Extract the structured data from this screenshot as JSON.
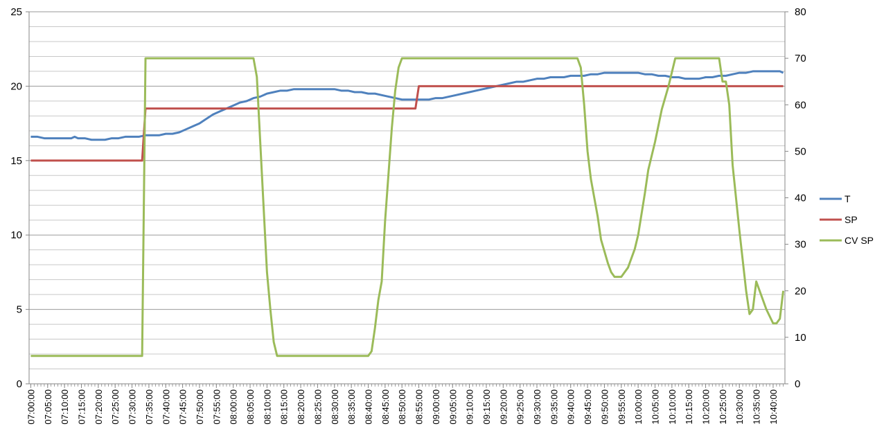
{
  "chart_data": {
    "type": "line",
    "title": "",
    "xlabel": "",
    "ylabel": "",
    "y2label": "",
    "grid": true,
    "legend_position": "right",
    "x_range": [
      "07:00:00",
      "10:43:00"
    ],
    "x_ticks": [
      "07:00:00",
      "07:05:00",
      "07:10:00",
      "07:15:00",
      "07:20:00",
      "07:25:00",
      "07:30:00",
      "07:35:00",
      "07:40:00",
      "07:45:00",
      "07:50:00",
      "07:55:00",
      "08:00:00",
      "08:05:00",
      "08:10:00",
      "08:15:00",
      "08:20:00",
      "08:25:00",
      "08:30:00",
      "08:35:00",
      "08:40:00",
      "08:45:00",
      "08:50:00",
      "08:55:00",
      "09:00:00",
      "09:05:00",
      "09:10:00",
      "09:15:00",
      "09:20:00",
      "09:25:00",
      "09:30:00",
      "09:35:00",
      "09:40:00",
      "09:45:00",
      "09:50:00",
      "09:55:00",
      "10:00:00",
      "10:05:00",
      "10:10:00",
      "10:15:00",
      "10:20:00",
      "10:25:00",
      "10:30:00",
      "10:35:00",
      "10:40:00"
    ],
    "y_left": {
      "min": 0,
      "max": 25,
      "ticks": [
        0,
        5,
        10,
        15,
        20,
        25
      ]
    },
    "y_right": {
      "min": 0,
      "max": 80,
      "ticks": [
        0,
        10,
        20,
        30,
        40,
        50,
        60,
        70,
        80
      ]
    },
    "series": [
      {
        "name": "T",
        "axis": "left",
        "color": "#4f81bd",
        "points": [
          [
            "07:00:00",
            16.6
          ],
          [
            "07:02:00",
            16.6
          ],
          [
            "07:04:00",
            16.5
          ],
          [
            "07:06:00",
            16.5
          ],
          [
            "07:08:00",
            16.5
          ],
          [
            "07:10:00",
            16.5
          ],
          [
            "07:12:00",
            16.5
          ],
          [
            "07:13:00",
            16.6
          ],
          [
            "07:14:00",
            16.5
          ],
          [
            "07:16:00",
            16.5
          ],
          [
            "07:18:00",
            16.4
          ],
          [
            "07:20:00",
            16.4
          ],
          [
            "07:22:00",
            16.4
          ],
          [
            "07:24:00",
            16.5
          ],
          [
            "07:26:00",
            16.5
          ],
          [
            "07:28:00",
            16.6
          ],
          [
            "07:30:00",
            16.6
          ],
          [
            "07:32:00",
            16.6
          ],
          [
            "07:34:00",
            16.7
          ],
          [
            "07:36:00",
            16.7
          ],
          [
            "07:38:00",
            16.7
          ],
          [
            "07:40:00",
            16.8
          ],
          [
            "07:42:00",
            16.8
          ],
          [
            "07:44:00",
            16.9
          ],
          [
            "07:46:00",
            17.1
          ],
          [
            "07:48:00",
            17.3
          ],
          [
            "07:50:00",
            17.5
          ],
          [
            "07:52:00",
            17.8
          ],
          [
            "07:54:00",
            18.1
          ],
          [
            "07:56:00",
            18.3
          ],
          [
            "07:58:00",
            18.5
          ],
          [
            "08:00:00",
            18.7
          ],
          [
            "08:02:00",
            18.9
          ],
          [
            "08:04:00",
            19.0
          ],
          [
            "08:06:00",
            19.2
          ],
          [
            "08:08:00",
            19.3
          ],
          [
            "08:10:00",
            19.5
          ],
          [
            "08:12:00",
            19.6
          ],
          [
            "08:14:00",
            19.7
          ],
          [
            "08:16:00",
            19.7
          ],
          [
            "08:18:00",
            19.8
          ],
          [
            "08:20:00",
            19.8
          ],
          [
            "08:22:00",
            19.8
          ],
          [
            "08:24:00",
            19.8
          ],
          [
            "08:26:00",
            19.8
          ],
          [
            "08:28:00",
            19.8
          ],
          [
            "08:30:00",
            19.8
          ],
          [
            "08:32:00",
            19.7
          ],
          [
            "08:34:00",
            19.7
          ],
          [
            "08:36:00",
            19.6
          ],
          [
            "08:38:00",
            19.6
          ],
          [
            "08:40:00",
            19.5
          ],
          [
            "08:42:00",
            19.5
          ],
          [
            "08:44:00",
            19.4
          ],
          [
            "08:46:00",
            19.3
          ],
          [
            "08:48:00",
            19.2
          ],
          [
            "08:50:00",
            19.1
          ],
          [
            "08:52:00",
            19.1
          ],
          [
            "08:54:00",
            19.1
          ],
          [
            "08:56:00",
            19.1
          ],
          [
            "08:58:00",
            19.1
          ],
          [
            "09:00:00",
            19.2
          ],
          [
            "09:02:00",
            19.2
          ],
          [
            "09:04:00",
            19.3
          ],
          [
            "09:06:00",
            19.4
          ],
          [
            "09:08:00",
            19.5
          ],
          [
            "09:10:00",
            19.6
          ],
          [
            "09:12:00",
            19.7
          ],
          [
            "09:14:00",
            19.8
          ],
          [
            "09:16:00",
            19.9
          ],
          [
            "09:18:00",
            20.0
          ],
          [
            "09:20:00",
            20.1
          ],
          [
            "09:22:00",
            20.2
          ],
          [
            "09:24:00",
            20.3
          ],
          [
            "09:26:00",
            20.3
          ],
          [
            "09:28:00",
            20.4
          ],
          [
            "09:30:00",
            20.5
          ],
          [
            "09:32:00",
            20.5
          ],
          [
            "09:34:00",
            20.6
          ],
          [
            "09:36:00",
            20.6
          ],
          [
            "09:38:00",
            20.6
          ],
          [
            "09:40:00",
            20.7
          ],
          [
            "09:42:00",
            20.7
          ],
          [
            "09:44:00",
            20.7
          ],
          [
            "09:46:00",
            20.8
          ],
          [
            "09:48:00",
            20.8
          ],
          [
            "09:50:00",
            20.9
          ],
          [
            "09:52:00",
            20.9
          ],
          [
            "09:54:00",
            20.9
          ],
          [
            "09:56:00",
            20.9
          ],
          [
            "09:58:00",
            20.9
          ],
          [
            "10:00:00",
            20.9
          ],
          [
            "10:02:00",
            20.8
          ],
          [
            "10:04:00",
            20.8
          ],
          [
            "10:06:00",
            20.7
          ],
          [
            "10:08:00",
            20.7
          ],
          [
            "10:10:00",
            20.6
          ],
          [
            "10:12:00",
            20.6
          ],
          [
            "10:14:00",
            20.5
          ],
          [
            "10:16:00",
            20.5
          ],
          [
            "10:18:00",
            20.5
          ],
          [
            "10:20:00",
            20.6
          ],
          [
            "10:22:00",
            20.6
          ],
          [
            "10:24:00",
            20.7
          ],
          [
            "10:26:00",
            20.7
          ],
          [
            "10:28:00",
            20.8
          ],
          [
            "10:30:00",
            20.9
          ],
          [
            "10:32:00",
            20.9
          ],
          [
            "10:34:00",
            21.0
          ],
          [
            "10:36:00",
            21.0
          ],
          [
            "10:38:00",
            21.0
          ],
          [
            "10:40:00",
            21.0
          ],
          [
            "10:42:00",
            21.0
          ],
          [
            "10:43:00",
            20.9
          ]
        ]
      },
      {
        "name": "SP",
        "axis": "left",
        "color": "#c0504d",
        "points": [
          [
            "07:00:00",
            15.0
          ],
          [
            "07:33:00",
            15.0
          ],
          [
            "07:34:00",
            18.5
          ],
          [
            "08:54:00",
            18.5
          ],
          [
            "08:55:00",
            20.0
          ],
          [
            "10:43:00",
            20.0
          ]
        ]
      },
      {
        "name": "CV SP",
        "axis": "right",
        "color": "#9bbb59",
        "points": [
          [
            "07:00:00",
            6
          ],
          [
            "07:33:00",
            6
          ],
          [
            "07:34:00",
            70
          ],
          [
            "08:06:00",
            70
          ],
          [
            "08:07:00",
            66
          ],
          [
            "08:08:00",
            52
          ],
          [
            "08:09:00",
            38
          ],
          [
            "08:10:00",
            24
          ],
          [
            "08:11:00",
            16
          ],
          [
            "08:12:00",
            9
          ],
          [
            "08:13:00",
            6
          ],
          [
            "08:40:00",
            6
          ],
          [
            "08:41:00",
            7
          ],
          [
            "08:42:00",
            12
          ],
          [
            "08:43:00",
            18
          ],
          [
            "08:44:00",
            22
          ],
          [
            "08:45:00",
            35
          ],
          [
            "08:47:00",
            55
          ],
          [
            "08:48:00",
            63
          ],
          [
            "08:49:00",
            68
          ],
          [
            "08:50:00",
            70
          ],
          [
            "09:42:00",
            70
          ],
          [
            "09:43:00",
            68
          ],
          [
            "09:44:00",
            60
          ],
          [
            "09:45:00",
            50
          ],
          [
            "09:46:00",
            44
          ],
          [
            "09:48:00",
            36
          ],
          [
            "09:49:00",
            31
          ],
          [
            "09:51:00",
            26
          ],
          [
            "09:52:00",
            24
          ],
          [
            "09:53:00",
            23
          ],
          [
            "09:54:00",
            23
          ],
          [
            "09:55:00",
            23
          ],
          [
            "09:56:00",
            24
          ],
          [
            "09:57:00",
            25
          ],
          [
            "09:59:00",
            29
          ],
          [
            "10:00:00",
            32
          ],
          [
            "10:02:00",
            41
          ],
          [
            "10:03:00",
            46
          ],
          [
            "10:05:00",
            52
          ],
          [
            "10:07:00",
            59
          ],
          [
            "10:09:00",
            64
          ],
          [
            "10:10:00",
            67
          ],
          [
            "10:11:00",
            70
          ],
          [
            "10:24:00",
            70
          ],
          [
            "10:25:00",
            65
          ],
          [
            "10:26:00",
            65
          ],
          [
            "10:27:00",
            60
          ],
          [
            "10:28:00",
            47
          ],
          [
            "10:30:00",
            33
          ],
          [
            "10:32:00",
            20
          ],
          [
            "10:33:00",
            15
          ],
          [
            "10:34:00",
            16
          ],
          [
            "10:35:00",
            22
          ],
          [
            "10:36:00",
            20
          ],
          [
            "10:38:00",
            16
          ],
          [
            "10:40:00",
            13
          ],
          [
            "10:41:00",
            13
          ],
          [
            "10:42:00",
            14
          ],
          [
            "10:43:00",
            20
          ]
        ]
      }
    ]
  }
}
